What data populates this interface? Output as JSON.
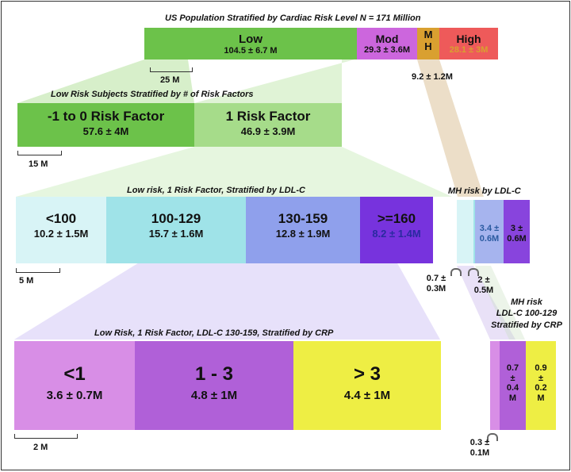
{
  "level1": {
    "title": "US Population Stratified by Cardiac Risk Level  N = 171 Million",
    "segments": [
      {
        "label": "Low",
        "value": "104.5 ± 6.7 M"
      },
      {
        "label": "Mod",
        "value": "29.3 ± 3.6M"
      },
      {
        "label": "M\nH",
        "value": ""
      },
      {
        "label": "High",
        "value": "28.1 ± 3M"
      }
    ],
    "mh_value": "9.2 ± 1.2M",
    "scale": "25 M"
  },
  "level2": {
    "title": "Low Risk Subjects Stratified by # of  Risk Factors",
    "segments": [
      {
        "label": "-1 to 0 Risk Factor",
        "value": "57.6 ± 4M"
      },
      {
        "label": "1 Risk Factor",
        "value": "46.9 ± 3.9M"
      }
    ],
    "scale": "15 M"
  },
  "level3": {
    "title": "Low risk, 1 Risk Factor, Stratified by LDL-C",
    "segments": [
      {
        "label": "<100",
        "value": "10.2 ± 1.5M"
      },
      {
        "label": "100-129",
        "value": "15.7 ± 1.6M"
      },
      {
        "label": "130-159",
        "value": "12.8 ± 1.9M"
      },
      {
        "label": ">=160",
        "value": "8.2 ± 1.4M"
      }
    ],
    "scale": "5 M"
  },
  "level4": {
    "title": "Low Risk, 1  Risk Factor, LDL-C 130-159, Stratified by CRP",
    "segments": [
      {
        "label": "<1",
        "value": "3.6 ± 0.7M"
      },
      {
        "label": "1 - 3",
        "value": "4.8 ± 1M"
      },
      {
        "label": "> 3",
        "value": "4.4 ± 1M"
      }
    ],
    "scale": "2 M"
  },
  "mh_ldl": {
    "title": "MH risk by LDL-C",
    "segments": [
      {
        "value": "3.4 ±\n0.6M"
      },
      {
        "value": "3 ±\n0.6M"
      }
    ],
    "notes": [
      "0.7 ±\n0.3M",
      "2 ±\n0.5M"
    ]
  },
  "mh_crp": {
    "title": "MH risk\nLDL-C 100-129\nStratified by CRP",
    "segments": [
      {
        "value": "0.7\n±\n0.4\nM"
      },
      {
        "value": "0.9\n±\n0.2\nM"
      }
    ],
    "note": "0.3 ±\n0.1M"
  },
  "colors": {
    "green_dark": "#6cc24a",
    "green_light": "#a6dc8a",
    "mod": "#cc66dd",
    "mh": "#d9a030",
    "high": "#ee5a5a",
    "cyan_light": "#d8f4f6",
    "cyan": "#9fe3e8",
    "blue": "#8fa0ec",
    "purple": "#7733dd",
    "violet_light": "#d88ee6",
    "violet": "#b060d8",
    "yellow": "#eeee44"
  }
}
